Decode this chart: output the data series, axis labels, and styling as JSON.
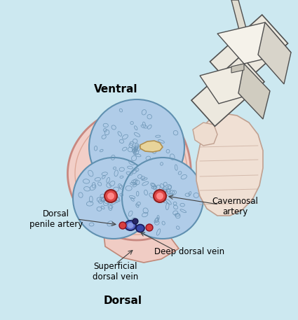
{
  "bg_color": "#cce8f0",
  "title_ventral": "Ventral",
  "title_dorsal": "Dorsal",
  "label_dorsal_penile": "Dorsal\npenile artery",
  "label_superficial": "Superficial\ndorsal vein",
  "label_deep": "Deep dorsal vein",
  "label_cavernosal": "Cavernosal\nartery",
  "skin_color": "#f2cfc8",
  "skin_outline": "#c88880",
  "corpus_color": "#b0cce8",
  "corpus_outline": "#6090b0",
  "cavernosal_artery_color": "#e05050",
  "vein_blue": "#4858b8",
  "vein_dark": "#1a2060",
  "transducer_color": "#e8e4dc",
  "transducer_outline": "#505050",
  "hand_color": "#f0e0d4",
  "hand_outline": "#c0a090",
  "text_color": "#000000",
  "label_fontsize": 8.5,
  "title_fontsize": 11
}
